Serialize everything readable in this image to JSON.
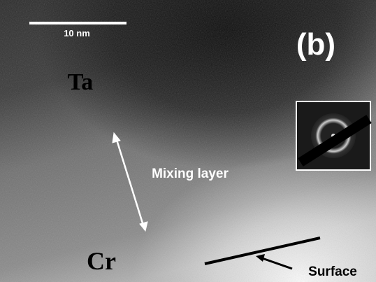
{
  "labels": {
    "scale_bar": "10 nm",
    "panel": "(b)",
    "top_region": "Ta",
    "middle_region": "Mixing layer",
    "bottom_region": "Cr",
    "surface": "Surface"
  }
}
